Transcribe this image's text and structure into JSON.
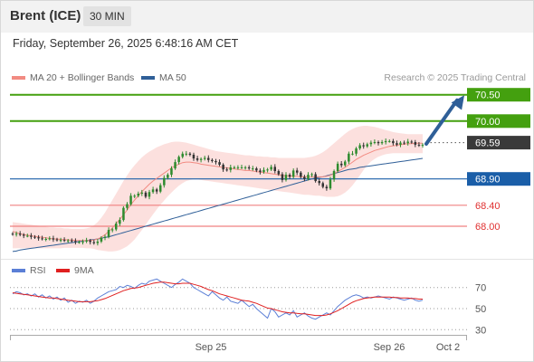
{
  "header": {
    "title": "Brent (ICE)",
    "timeframe": "30 MIN"
  },
  "timestamp": "Friday, September 26, 2025 6:48:16 AM CET",
  "legend": {
    "ma20": {
      "label": "MA 20 + Bollinger Bands",
      "color": "#f28b82"
    },
    "ma50": {
      "label": "MA 50",
      "color": "#2f5f98"
    },
    "rsi": {
      "label": "RSI",
      "color": "#5b7fd6"
    },
    "nine_ma": {
      "label": "9MA",
      "color": "#e02020"
    }
  },
  "credit": "Research © 2025 Trading Central",
  "colors": {
    "up": "#2e8b2e",
    "down": "#333333",
    "resistance": "#44a00f",
    "support": "#1a5ea8",
    "target_support": "#f08080",
    "arrow": "#2f5f98"
  },
  "chart_data": [
    {
      "type": "candlestick",
      "x_ticks": [
        "Sep 25",
        "Sep 26",
        "Oct 2"
      ],
      "y_range": [
        67.45,
        70.65
      ],
      "levels": [
        {
          "label": "70.50",
          "value": 70.5,
          "kind": "resistance"
        },
        {
          "label": "70.00",
          "value": 70.0,
          "kind": "resistance"
        },
        {
          "label": "69.59",
          "value": 69.59,
          "kind": "last"
        },
        {
          "label": "68.90",
          "value": 68.9,
          "kind": "pivot"
        },
        {
          "label": "68.40",
          "value": 68.4,
          "kind": "support"
        },
        {
          "label": "68.00",
          "value": 68.0,
          "kind": "support"
        }
      ],
      "close": [
        67.85,
        67.86,
        67.84,
        67.82,
        67.82,
        67.8,
        67.79,
        67.77,
        67.76,
        67.76,
        67.77,
        67.75,
        67.74,
        67.74,
        67.73,
        67.73,
        67.72,
        67.7,
        67.7,
        67.71,
        67.73,
        67.7,
        67.68,
        67.71,
        67.78,
        67.8,
        67.93,
        67.94,
        68.05,
        68.12,
        68.35,
        68.42,
        68.58,
        68.58,
        68.62,
        68.64,
        68.56,
        68.65,
        68.7,
        68.66,
        68.78,
        68.92,
        68.98,
        69.1,
        69.22,
        69.32,
        69.38,
        69.38,
        69.36,
        69.29,
        69.26,
        69.28,
        69.3,
        69.26,
        69.24,
        69.22,
        69.17,
        69.08,
        69.07,
        69.12,
        69.12,
        69.12,
        69.12,
        69.12,
        69.1,
        69.1,
        69.06,
        69.03,
        69.07,
        69.08,
        69.13,
        69.05,
        68.99,
        68.88,
        68.98,
        68.94,
        69.06,
        69.02,
        68.94,
        68.9,
        68.98,
        68.99,
        68.86,
        68.82,
        68.75,
        68.72,
        68.89,
        69.05,
        69.19,
        69.16,
        69.23,
        69.38,
        69.38,
        69.48,
        69.54,
        69.52,
        69.56,
        69.59,
        69.6,
        69.58,
        69.6,
        69.62,
        69.62,
        69.58,
        69.55,
        69.59,
        69.58,
        69.61,
        69.6,
        69.55,
        69.54,
        69.55
      ],
      "ma20": [
        67.9,
        67.88,
        67.86,
        67.84,
        67.83,
        67.82,
        67.81,
        67.8,
        67.79,
        67.78,
        67.77,
        67.76,
        67.76,
        67.75,
        67.75,
        67.74,
        67.74,
        67.73,
        67.73,
        67.73,
        67.73,
        67.73,
        67.74,
        67.76,
        67.79,
        67.84,
        67.9,
        67.97,
        68.05,
        68.13,
        68.22,
        68.31,
        68.41,
        68.5,
        68.58,
        68.66,
        68.73,
        68.8,
        68.86,
        68.91,
        68.96,
        69.01,
        69.06,
        69.11,
        69.15,
        69.18,
        69.21,
        69.22,
        69.22,
        69.21,
        69.2,
        69.18,
        69.17,
        69.16,
        69.15,
        69.14,
        69.13,
        69.12,
        69.11,
        69.1,
        69.09,
        69.08,
        69.07,
        69.06,
        69.06,
        69.05,
        69.04,
        69.03,
        69.02,
        69.01,
        69.0,
        68.99,
        68.98,
        68.97,
        68.96,
        68.96,
        68.95,
        68.95,
        68.94,
        68.94,
        68.94,
        68.94,
        68.94,
        68.94,
        68.94,
        68.95,
        68.97,
        69.0,
        69.04,
        69.08,
        69.12,
        69.17,
        69.22,
        69.27,
        69.31,
        69.35,
        69.38,
        69.41,
        69.44,
        69.46,
        69.48,
        69.5,
        69.52,
        69.53,
        69.54,
        69.55,
        69.56,
        69.57,
        69.57,
        69.58,
        69.58,
        69.58
      ],
      "bb_upper": [
        68.08,
        68.07,
        68.06,
        68.05,
        68.04,
        68.03,
        68.02,
        68.01,
        68.0,
        67.99,
        67.98,
        67.98,
        67.97,
        67.97,
        67.96,
        67.96,
        67.95,
        67.95,
        67.95,
        67.95,
        67.96,
        67.98,
        68.02,
        68.08,
        68.16,
        68.26,
        68.38,
        68.5,
        68.62,
        68.74,
        68.86,
        68.97,
        69.07,
        69.16,
        69.24,
        69.31,
        69.37,
        69.42,
        69.46,
        69.5,
        69.53,
        69.56,
        69.58,
        69.6,
        69.61,
        69.61,
        69.6,
        69.59,
        69.57,
        69.55,
        69.53,
        69.51,
        69.49,
        69.47,
        69.45,
        69.43,
        69.42,
        69.41,
        69.4,
        69.39,
        69.38,
        69.37,
        69.36,
        69.35,
        69.35,
        69.34,
        69.33,
        69.33,
        69.32,
        69.32,
        69.31,
        69.31,
        69.3,
        69.3,
        69.3,
        69.3,
        69.3,
        69.3,
        69.3,
        69.3,
        69.31,
        69.32,
        69.34,
        69.37,
        69.41,
        69.46,
        69.52,
        69.58,
        69.64,
        69.7,
        69.76,
        69.81,
        69.85,
        69.88,
        69.9,
        69.91,
        69.91,
        69.9,
        69.89,
        69.87,
        69.85,
        69.83,
        69.81,
        69.79,
        69.78,
        69.77,
        69.76,
        69.75,
        69.75,
        69.75,
        69.75,
        69.75
      ],
      "bb_lower": [
        67.58,
        67.58,
        67.58,
        67.58,
        67.58,
        67.58,
        67.58,
        67.58,
        67.58,
        67.58,
        67.58,
        67.58,
        67.58,
        67.58,
        67.59,
        67.59,
        67.59,
        67.59,
        67.59,
        67.59,
        67.58,
        67.58,
        67.57,
        67.55,
        67.54,
        67.53,
        67.52,
        67.52,
        67.53,
        67.55,
        67.58,
        67.62,
        67.68,
        67.75,
        67.84,
        67.93,
        68.03,
        68.13,
        68.23,
        68.32,
        68.41,
        68.49,
        68.57,
        68.64,
        68.71,
        68.77,
        68.82,
        68.86,
        68.88,
        68.89,
        68.89,
        68.88,
        68.87,
        68.86,
        68.85,
        68.84,
        68.83,
        68.82,
        68.81,
        68.8,
        68.79,
        68.78,
        68.77,
        68.76,
        68.75,
        68.74,
        68.73,
        68.72,
        68.71,
        68.7,
        68.69,
        68.68,
        68.67,
        68.66,
        68.65,
        68.64,
        68.63,
        68.62,
        68.61,
        68.6,
        68.6,
        68.59,
        68.58,
        68.58,
        68.57,
        68.56,
        68.56,
        68.56,
        68.57,
        68.6,
        68.64,
        68.7,
        68.78,
        68.87,
        68.97,
        69.07,
        69.16,
        69.23,
        69.28,
        69.32,
        69.35,
        69.37,
        69.38,
        69.39,
        69.39,
        69.39,
        69.39,
        69.39,
        69.39,
        69.39,
        69.39,
        69.39
      ],
      "ma50": [
        67.52,
        67.53,
        67.55,
        67.56,
        67.57,
        67.58,
        67.59,
        67.6,
        67.61,
        67.62,
        67.63,
        67.64,
        67.65,
        67.66,
        67.67,
        67.68,
        67.69,
        67.7,
        67.71,
        67.72,
        67.73,
        67.74,
        67.75,
        67.76,
        67.77,
        67.79,
        67.8,
        67.82,
        67.84,
        67.86,
        67.88,
        67.9,
        67.92,
        67.94,
        67.96,
        67.98,
        68.0,
        68.02,
        68.04,
        68.06,
        68.08,
        68.1,
        68.12,
        68.14,
        68.16,
        68.18,
        68.2,
        68.22,
        68.24,
        68.26,
        68.28,
        68.3,
        68.32,
        68.34,
        68.36,
        68.38,
        68.4,
        68.42,
        68.44,
        68.46,
        68.48,
        68.5,
        68.52,
        68.54,
        68.56,
        68.58,
        68.6,
        68.62,
        68.64,
        68.66,
        68.68,
        68.7,
        68.72,
        68.74,
        68.76,
        68.78,
        68.8,
        68.82,
        68.84,
        68.86,
        68.88,
        68.9,
        68.92,
        68.93,
        68.94,
        68.96,
        68.98,
        69.0,
        69.02,
        69.04,
        69.06,
        69.08,
        69.09,
        69.1,
        69.12,
        69.13,
        69.14,
        69.15,
        69.16,
        69.17,
        69.18,
        69.19,
        69.2,
        69.21,
        69.22,
        69.23,
        69.24,
        69.25,
        69.26,
        69.27,
        69.28,
        69.29
      ]
    },
    {
      "type": "line",
      "title": "RSI",
      "y_ticks": [
        70,
        50,
        30
      ],
      "y_range": [
        20,
        80
      ],
      "series": [
        {
          "name": "RSI",
          "values": [
            64,
            66,
            65,
            63,
            64,
            62,
            64,
            61,
            63,
            60,
            62,
            59,
            61,
            58,
            60,
            56,
            58,
            55,
            57,
            56,
            58,
            55,
            57,
            60,
            62,
            64,
            66,
            67,
            68,
            71,
            70,
            72,
            71,
            69,
            72,
            74,
            73,
            76,
            77,
            78,
            76,
            74,
            72,
            70,
            73,
            75,
            78,
            76,
            74,
            70,
            68,
            66,
            64,
            62,
            66,
            63,
            60,
            58,
            61,
            57,
            56,
            55,
            58,
            55,
            52,
            54,
            50,
            47,
            44,
            41,
            50,
            47,
            42,
            44,
            46,
            44,
            48,
            42,
            44,
            46,
            43,
            41,
            40,
            42,
            44,
            46,
            44,
            48,
            52,
            55,
            58,
            60,
            62,
            63,
            62,
            60,
            61,
            60,
            61,
            62,
            61,
            60,
            59,
            61,
            60,
            59,
            58,
            59,
            60,
            58,
            57,
            58
          ]
        },
        {
          "name": "9MA",
          "values": [
            65,
            64.5,
            64,
            63.5,
            63,
            62.5,
            62,
            61.5,
            61,
            60.5,
            60,
            60,
            59.5,
            59,
            58.5,
            58,
            57.5,
            57,
            56.5,
            56.5,
            56.5,
            56.5,
            57,
            57.5,
            58.5,
            59.5,
            61,
            62.5,
            64,
            65.5,
            67,
            68,
            69,
            69.5,
            70,
            71,
            72,
            73,
            74,
            74.5,
            75,
            75,
            74.5,
            74,
            73.5,
            73.5,
            74,
            74,
            74,
            73,
            72,
            71,
            69.5,
            68,
            67,
            65.5,
            64,
            63,
            62,
            61,
            60,
            59,
            58,
            57.5,
            57,
            56,
            55,
            53.5,
            52,
            50.5,
            50,
            49,
            48,
            47,
            46.5,
            46,
            46,
            45.5,
            45,
            45,
            44.5,
            44,
            43.5,
            43.5,
            43.5,
            44,
            45,
            46.5,
            48,
            50,
            52,
            54,
            56,
            57.5,
            58.5,
            59.5,
            60,
            60.5,
            61,
            61,
            61,
            61,
            61,
            60.5,
            60.5,
            60,
            60,
            60,
            59.5,
            59.5,
            59,
            59
          ]
        }
      ]
    }
  ]
}
